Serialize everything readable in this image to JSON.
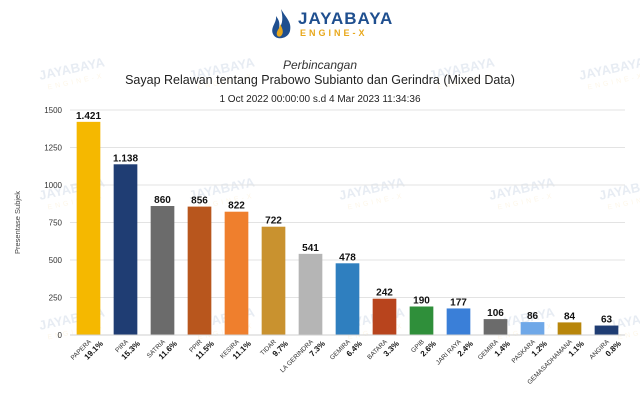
{
  "header": {
    "brand": "JAYABAYA",
    "engine": "ENGINE-X",
    "subtitle": "Perbincangan",
    "title": "Sayap Relawan tentang Prabowo Subianto dan Gerindra (Mixed Data)",
    "date_range": "1 Oct 2022 00:00:00 s.d 4 Mar 2023 11:34:36"
  },
  "colors": {
    "brand": "#1f4f8f",
    "accent": "#e8a81c"
  },
  "chart_data": {
    "type": "bar",
    "ylabel": "Presentase Subjek",
    "ylim": [
      0,
      1500
    ],
    "yticks": [
      0,
      250,
      500,
      750,
      1000,
      1250,
      1500
    ],
    "grid": true,
    "categories": [
      "PAPERA",
      "PIRA",
      "SATRIA",
      "PPIR",
      "KESIRA",
      "TIDAR",
      "LA GERINDRA",
      "GEMIRA",
      "BATARA",
      "GPIB",
      "JARI RAYA",
      "GEMIRA",
      "PASKARA",
      "GEMASADHAMANA",
      "ANGIRA"
    ],
    "values": [
      1421,
      1138,
      860,
      856,
      822,
      722,
      541,
      478,
      242,
      190,
      177,
      106,
      86,
      84,
      63
    ],
    "value_labels": [
      "1.421",
      "1.138",
      "860",
      "856",
      "822",
      "722",
      "541",
      "478",
      "242",
      "190",
      "177",
      "106",
      "86",
      "84",
      "63"
    ],
    "percent_labels": [
      "19.1%",
      "15.3%",
      "11.6%",
      "11.5%",
      "11.1%",
      "9.7%",
      "7.3%",
      "6.4%",
      "3.3%",
      "2.6%",
      "2.4%",
      "1.4%",
      "1.2%",
      "1.1%",
      "0.8%"
    ],
    "colors": [
      "#f5b800",
      "#1f3d73",
      "#6b6b6b",
      "#b8561d",
      "#ef7f2d",
      "#c9922f",
      "#b5b5b5",
      "#2f7fbf",
      "#b8441d",
      "#2f8f3a",
      "#3a7fd8",
      "#6b6b6b",
      "#6fa8e8",
      "#b8860b",
      "#1f3d73"
    ]
  }
}
